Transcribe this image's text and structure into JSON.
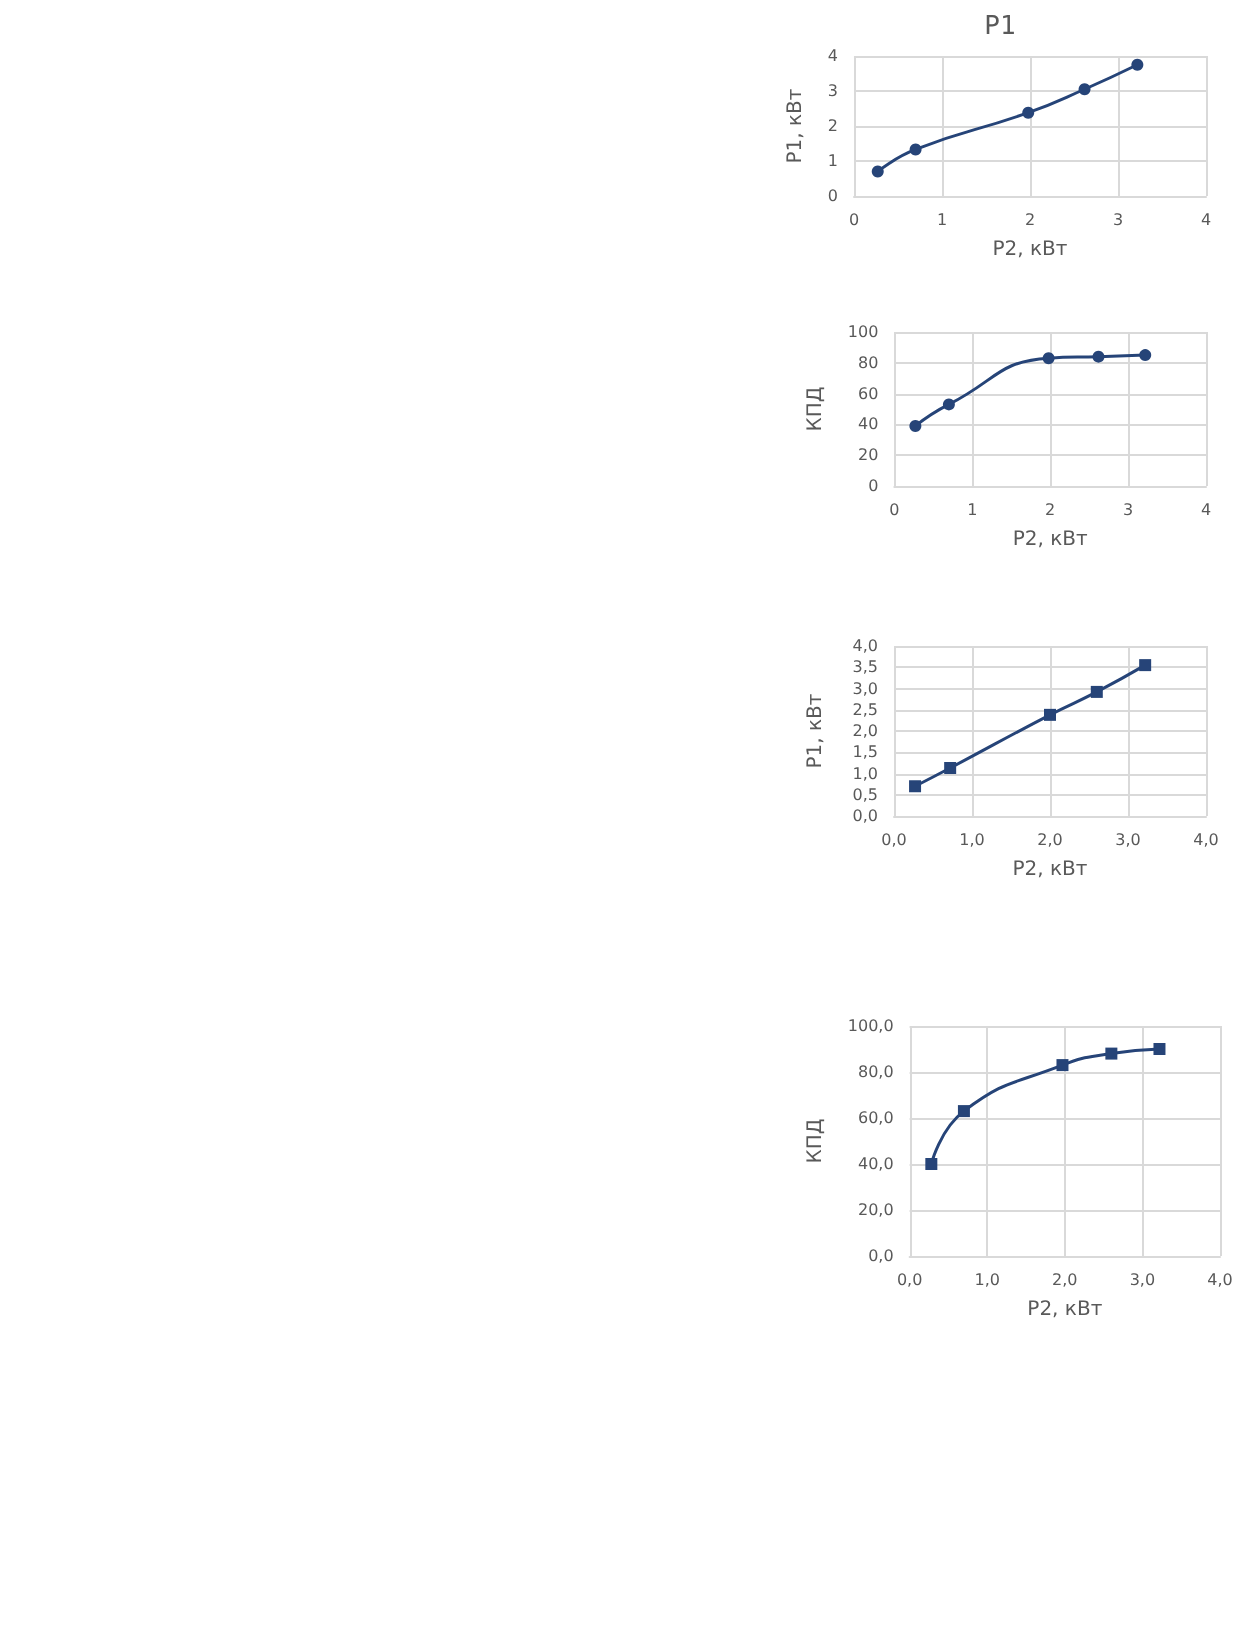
{
  "chart_data": [
    {
      "type": "line",
      "title": "P1",
      "xlabel": "P2, кВт",
      "ylabel": "P1, кВт",
      "x": [
        0.27,
        0.7,
        1.98,
        2.62,
        3.22
      ],
      "xlim": [
        0,
        4
      ],
      "xticks": [
        0,
        1,
        2,
        3,
        4
      ],
      "ylim": [
        0,
        4
      ],
      "yticks": [
        0,
        1,
        2,
        3,
        4
      ],
      "grid": true,
      "marker": "circle",
      "line_style": "solid",
      "series": [
        {
          "color": "#264478",
          "values": [
            0.7,
            1.33,
            2.38,
            3.05,
            3.75
          ]
        }
      ]
    },
    {
      "type": "line",
      "xlabel": "P2, кВт",
      "ylabel": "КПД",
      "x": [
        0.27,
        0.7,
        1.98,
        2.62,
        3.22
      ],
      "xlim": [
        0,
        4
      ],
      "xticks": [
        0,
        1,
        2,
        3,
        4
      ],
      "ylim": [
        0,
        100
      ],
      "yticks": [
        0,
        20,
        40,
        60,
        80,
        100
      ],
      "grid": true,
      "marker": "circle",
      "line_style": "solid",
      "series": [
        {
          "color": "#264478",
          "values": [
            39,
            53,
            83,
            84,
            85
          ]
        }
      ]
    },
    {
      "type": "line",
      "xlabel": "P2, кВт",
      "ylabel": "P1, кВт",
      "x": [
        0.27,
        0.72,
        2.0,
        2.6,
        3.22
      ],
      "xlim": [
        0,
        4
      ],
      "xticks": [
        {
          "value": 0,
          "label": "0,0"
        },
        {
          "value": 1,
          "label": "1,0"
        },
        {
          "value": 2,
          "label": "2,0"
        },
        {
          "value": 3,
          "label": "3,0"
        },
        {
          "value": 4,
          "label": "4,0"
        }
      ],
      "ylim": [
        0,
        4
      ],
      "yticks": [
        {
          "value": 0,
          "label": "0,0"
        },
        {
          "value": 0.5,
          "label": "0,5"
        },
        {
          "value": 1,
          "label": "1,0"
        },
        {
          "value": 1.5,
          "label": "1,5"
        },
        {
          "value": 2,
          "label": "2,0"
        },
        {
          "value": 2.5,
          "label": "2,5"
        },
        {
          "value": 3,
          "label": "3,0"
        },
        {
          "value": 3.5,
          "label": "3,5"
        },
        {
          "value": 4,
          "label": "4,0"
        }
      ],
      "grid": true,
      "marker": "square",
      "line_style": "solid",
      "series": [
        {
          "color": "#264478",
          "values": [
            0.7,
            1.13,
            2.38,
            2.92,
            3.55
          ]
        }
      ]
    },
    {
      "type": "line",
      "xlabel": "P2, кВт",
      "ylabel": "КПД",
      "x": [
        0.28,
        0.7,
        1.97,
        2.6,
        3.22
      ],
      "xlim": [
        0,
        4
      ],
      "xticks": [
        {
          "value": 0,
          "label": "0,0"
        },
        {
          "value": 1,
          "label": "1,0"
        },
        {
          "value": 2,
          "label": "2,0"
        },
        {
          "value": 3,
          "label": "3,0"
        },
        {
          "value": 4,
          "label": "4,0"
        }
      ],
      "ylim": [
        0,
        100
      ],
      "yticks": [
        {
          "value": 0,
          "label": "0,0"
        },
        {
          "value": 20,
          "label": "20,0"
        },
        {
          "value": 40,
          "label": "40,0"
        },
        {
          "value": 60,
          "label": "60,0"
        },
        {
          "value": 80,
          "label": "80,0"
        },
        {
          "value": 100,
          "label": "100,0"
        }
      ],
      "grid": true,
      "marker": "square",
      "line_style": "solid",
      "series": [
        {
          "color": "#264478",
          "values": [
            40,
            63,
            83,
            88,
            90
          ]
        }
      ]
    }
  ]
}
